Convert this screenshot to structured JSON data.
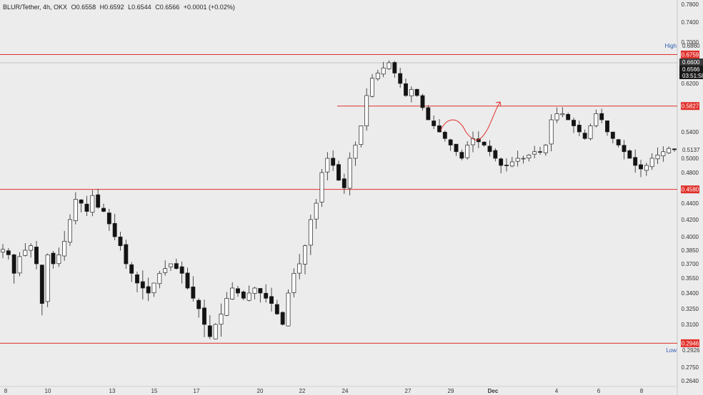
{
  "header": {
    "symbol": "BLUR/Tether, 4h, OKX",
    "open": "O0.6558",
    "high": "H0.6592",
    "low": "L0.6544",
    "close": "C0.6566",
    "change": "+0.0001 (+0.02%)"
  },
  "colors": {
    "background": "#ececec",
    "candle_up": "#ffffff",
    "candle_down": "#131313",
    "wick": "#222222",
    "level_line": "#e0302b",
    "axis_text": "#333333"
  },
  "chart_data": {
    "type": "candlestick",
    "x_tick_labels": [
      "8",
      "10",
      "13",
      "15",
      "17",
      "20",
      "22",
      "24",
      "27",
      "29",
      "Dec",
      "4",
      "6",
      "8"
    ],
    "y_tick_labels": [
      "0.7800",
      "0.7400",
      "0.7000",
      "0.6200",
      "0.5400",
      "0.5000",
      "0.4800",
      "0.4400",
      "0.4200",
      "0.4000",
      "0.3850",
      "0.3700",
      "0.3550",
      "0.3400",
      "0.3250",
      "0.3100",
      "0.2750",
      "0.2640"
    ],
    "horizontal_levels": [
      0.6759,
      0.5827,
      0.458,
      0.2946
    ],
    "level_labels": [
      "0.6759",
      "0.5827",
      "0.4580",
      "0.2946"
    ],
    "price_markers": [
      {
        "label": "High",
        "value": "0.6860"
      },
      {
        "label": "",
        "value": "0.6600"
      },
      {
        "label": "",
        "value": "0.6566"
      },
      {
        "label": "",
        "value": "03:51:58"
      },
      {
        "label": "",
        "value": "0.5137"
      },
      {
        "label": "Low",
        "value": "0.2926"
      }
    ],
    "approx_close_path": [
      0.386,
      0.38,
      0.36,
      0.378,
      0.385,
      0.39,
      0.37,
      0.33,
      0.38,
      0.37,
      0.38,
      0.395,
      0.42,
      0.445,
      0.44,
      0.43,
      0.45,
      0.435,
      0.43,
      0.415,
      0.4,
      0.39,
      0.37,
      0.36,
      0.35,
      0.345,
      0.34,
      0.35,
      0.36,
      0.365,
      0.37,
      0.365,
      0.36,
      0.345,
      0.335,
      0.325,
      0.31,
      0.3,
      0.31,
      0.32,
      0.335,
      0.345,
      0.34,
      0.335,
      0.34,
      0.345,
      0.34,
      0.335,
      0.33,
      0.32,
      0.31,
      0.34,
      0.36,
      0.37,
      0.39,
      0.42,
      0.44,
      0.48,
      0.5,
      0.49,
      0.47,
      0.46,
      0.5,
      0.52,
      0.55,
      0.6,
      0.63,
      0.64,
      0.65,
      0.66,
      0.64,
      0.62,
      0.6,
      0.61,
      0.6,
      0.58,
      0.56,
      0.55,
      0.54,
      0.53,
      0.52,
      0.51,
      0.5,
      0.52,
      0.53,
      0.525,
      0.52,
      0.51,
      0.5,
      0.49,
      0.49,
      0.495,
      0.5,
      0.5,
      0.505,
      0.51,
      0.51,
      0.52,
      0.56,
      0.57,
      0.57,
      0.56,
      0.55,
      0.54,
      0.53,
      0.55,
      0.57,
      0.56,
      0.54,
      0.53,
      0.52,
      0.51,
      0.5,
      0.49,
      0.485,
      0.49,
      0.5,
      0.505,
      0.51,
      0.515,
      0.513
    ],
    "annotation": "red hand-drawn curve with arrow"
  }
}
